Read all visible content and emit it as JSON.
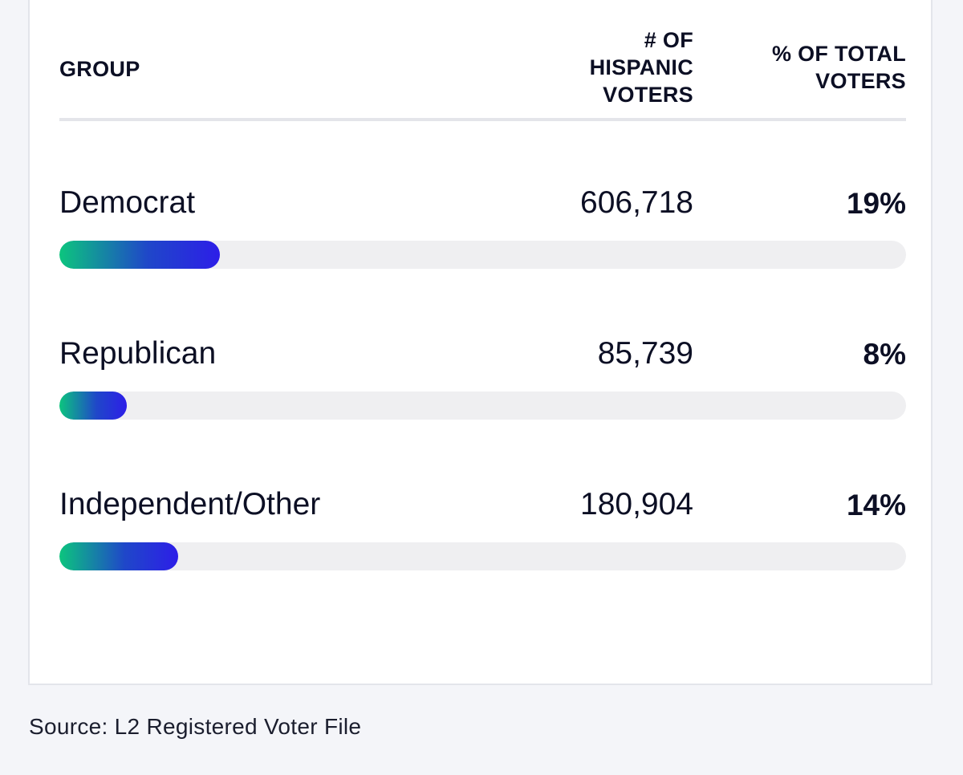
{
  "table": {
    "headers": {
      "group": "GROUP",
      "count": "# OF\nHISPANIC\nVOTERS",
      "pct": "% OF TOTAL\nVOTERS"
    }
  },
  "chart_data": {
    "type": "bar",
    "orientation": "horizontal",
    "categories": [
      "Democrat",
      "Republican",
      "Independent/Other"
    ],
    "counts": [
      "606,718",
      "85,739",
      "180,904"
    ],
    "pct_labels": [
      "19%",
      "8%",
      "14%"
    ],
    "values": [
      19,
      8,
      14
    ],
    "xlim": [
      0,
      100
    ],
    "grid": false,
    "colors": {
      "fill_start": "#0cc57e",
      "fill_end": "#2d1ee8",
      "track": "#efeff1"
    }
  },
  "source": "Source: L2 Registered Voter File"
}
